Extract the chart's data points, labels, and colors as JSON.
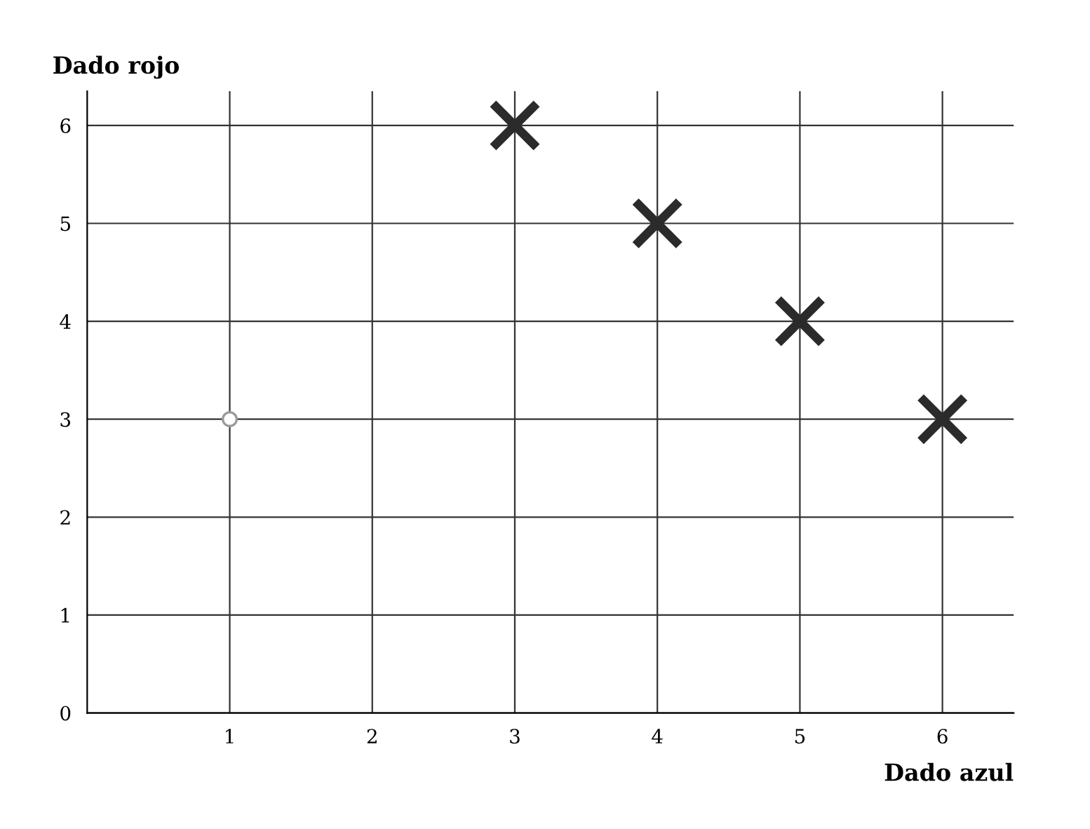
{
  "chart_data": {
    "type": "scatter",
    "xlabel": "Dado azul",
    "ylabel": "Dado rojo",
    "xlim": [
      0,
      6.5
    ],
    "ylim": [
      0,
      6.35
    ],
    "xticks": [
      1,
      2,
      3,
      4,
      5,
      6
    ],
    "yticks": [
      0,
      1,
      2,
      3,
      4,
      5,
      6
    ],
    "grid": true,
    "series": [
      {
        "color": "#2b2b2b",
        "marker": "cross",
        "x": [
          3,
          4,
          5,
          6
        ],
        "values": [
          6,
          5,
          4,
          3
        ]
      },
      {
        "color": "#9a9a9a",
        "marker": "circle",
        "x": [
          1
        ],
        "values": [
          3
        ]
      }
    ]
  }
}
